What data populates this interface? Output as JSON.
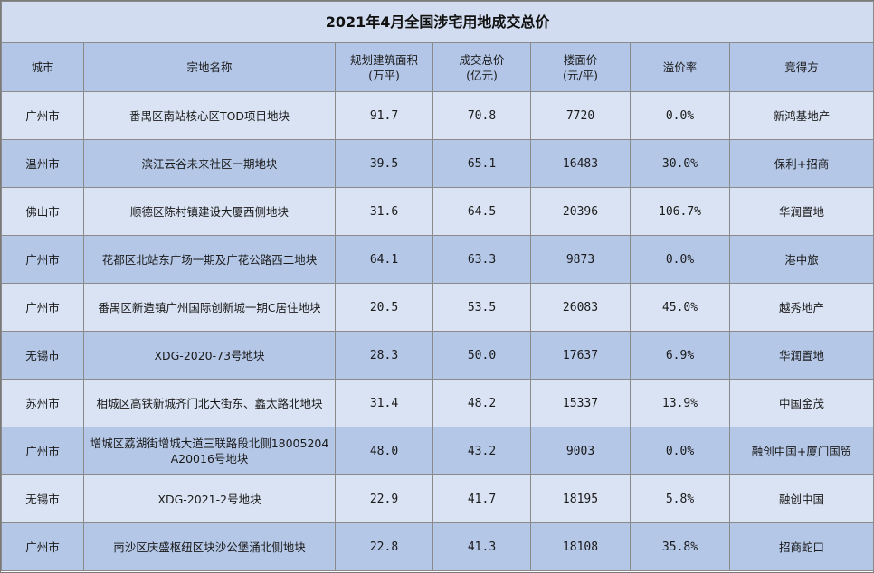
{
  "title": "2021年4月全国涉宅用地成交总价",
  "headers": {
    "city": "城市",
    "name": "宗地名称",
    "area_l1": "规划建筑面积",
    "area_l2": "(万平)",
    "price_l1": "成交总价",
    "price_l2": "(亿元)",
    "floor_l1": "楼面价",
    "floor_l2": "(元/平)",
    "premium": "溢价率",
    "buyer": "竞得方"
  },
  "rows": [
    {
      "city": "广州市",
      "name": "番禺区南站核心区TOD项目地块",
      "area": "91.7",
      "price": "70.8",
      "floor": "7720",
      "premium": "0.0%",
      "buyer": "新鸿基地产"
    },
    {
      "city": "温州市",
      "name": "滨江云谷未来社区一期地块",
      "area": "39.5",
      "price": "65.1",
      "floor": "16483",
      "premium": "30.0%",
      "buyer": "保利+招商"
    },
    {
      "city": "佛山市",
      "name": "顺德区陈村镇建设大厦西侧地块",
      "area": "31.6",
      "price": "64.5",
      "floor": "20396",
      "premium": "106.7%",
      "buyer": "华润置地"
    },
    {
      "city": "广州市",
      "name": "花都区北站东广场一期及广花公路西二地块",
      "area": "64.1",
      "price": "63.3",
      "floor": "9873",
      "premium": "0.0%",
      "buyer": "港中旅"
    },
    {
      "city": "广州市",
      "name": "番禺区新造镇广州国际创新城一期C居住地块",
      "area": "20.5",
      "price": "53.5",
      "floor": "26083",
      "premium": "45.0%",
      "buyer": "越秀地产"
    },
    {
      "city": "无锡市",
      "name": "XDG-2020-73号地块",
      "area": "28.3",
      "price": "50.0",
      "floor": "17637",
      "premium": "6.9%",
      "buyer": "华润置地"
    },
    {
      "city": "苏州市",
      "name": "相城区高铁新城齐门北大街东、蠡太路北地块",
      "area": "31.4",
      "price": "48.2",
      "floor": "15337",
      "premium": "13.9%",
      "buyer": "中国金茂"
    },
    {
      "city": "广州市",
      "name": "增城区荔湖街增城大道三联路段北侧18005204A20016号地块",
      "area": "48.0",
      "price": "43.2",
      "floor": "9003",
      "premium": "0.0%",
      "buyer": "融创中国+厦门国贸"
    },
    {
      "city": "无锡市",
      "name": "XDG-2021-2号地块",
      "area": "22.9",
      "price": "41.7",
      "floor": "18195",
      "premium": "5.8%",
      "buyer": "融创中国"
    },
    {
      "city": "广州市",
      "name": "南沙区庆盛枢纽区块沙公堡涌北侧地块",
      "area": "22.8",
      "price": "41.3",
      "floor": "18108",
      "premium": "35.8%",
      "buyer": "招商蛇口"
    }
  ]
}
